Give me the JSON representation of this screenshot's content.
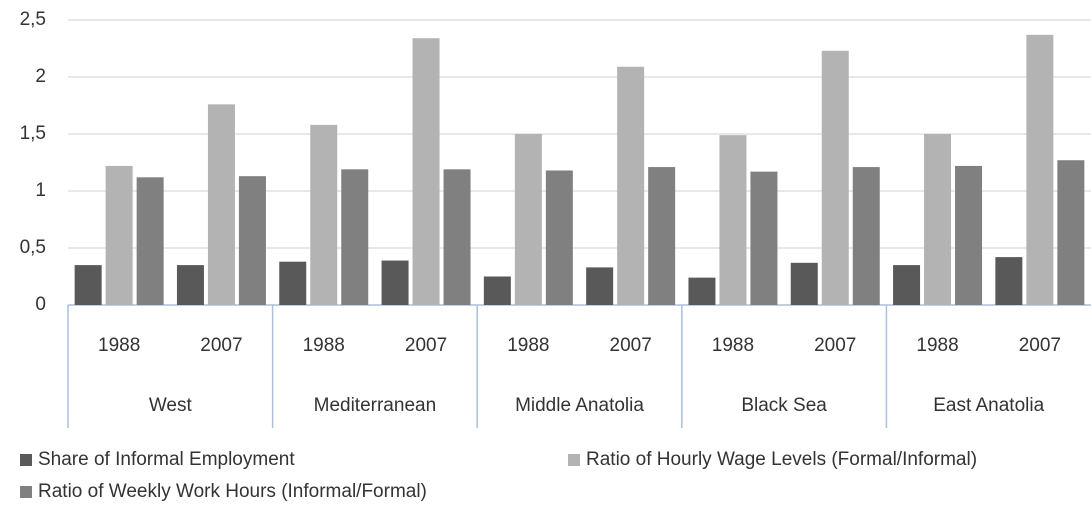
{
  "chart_data": {
    "type": "bar",
    "categories": [
      "1988",
      "2007",
      "1988",
      "2007",
      "1988",
      "2007",
      "1988",
      "2007",
      "1988",
      "2007"
    ],
    "category_groups": [
      "West",
      "Mediterranean",
      "Middle Anatolia",
      "Black Sea",
      "East Anatolia"
    ],
    "series": [
      {
        "name": "Share of Informal Employment",
        "color": "#595959",
        "values": [
          0.35,
          0.35,
          0.38,
          0.39,
          0.25,
          0.33,
          0.24,
          0.37,
          0.35,
          0.42
        ]
      },
      {
        "name": "Ratio of Hourly Wage Levels (Formal/Informal)",
        "color": "#b3b3b3",
        "values": [
          1.22,
          1.76,
          1.58,
          2.34,
          1.5,
          2.09,
          1.49,
          2.23,
          1.5,
          2.37
        ]
      },
      {
        "name": "Ratio of Weekly Work Hours (Informal/Formal)",
        "color": "#808080",
        "values": [
          1.12,
          1.13,
          1.19,
          1.19,
          1.18,
          1.21,
          1.17,
          1.21,
          1.22,
          1.27
        ]
      }
    ],
    "ylim": [
      0,
      2.5
    ],
    "yticks": [
      0,
      {
        "value": 0.5,
        "label": "0,5"
      },
      1,
      {
        "value": 1.5,
        "label": "1,5"
      },
      2,
      {
        "value": 2.5,
        "label": "2,5"
      }
    ],
    "grid": true,
    "legend": "bottom"
  }
}
